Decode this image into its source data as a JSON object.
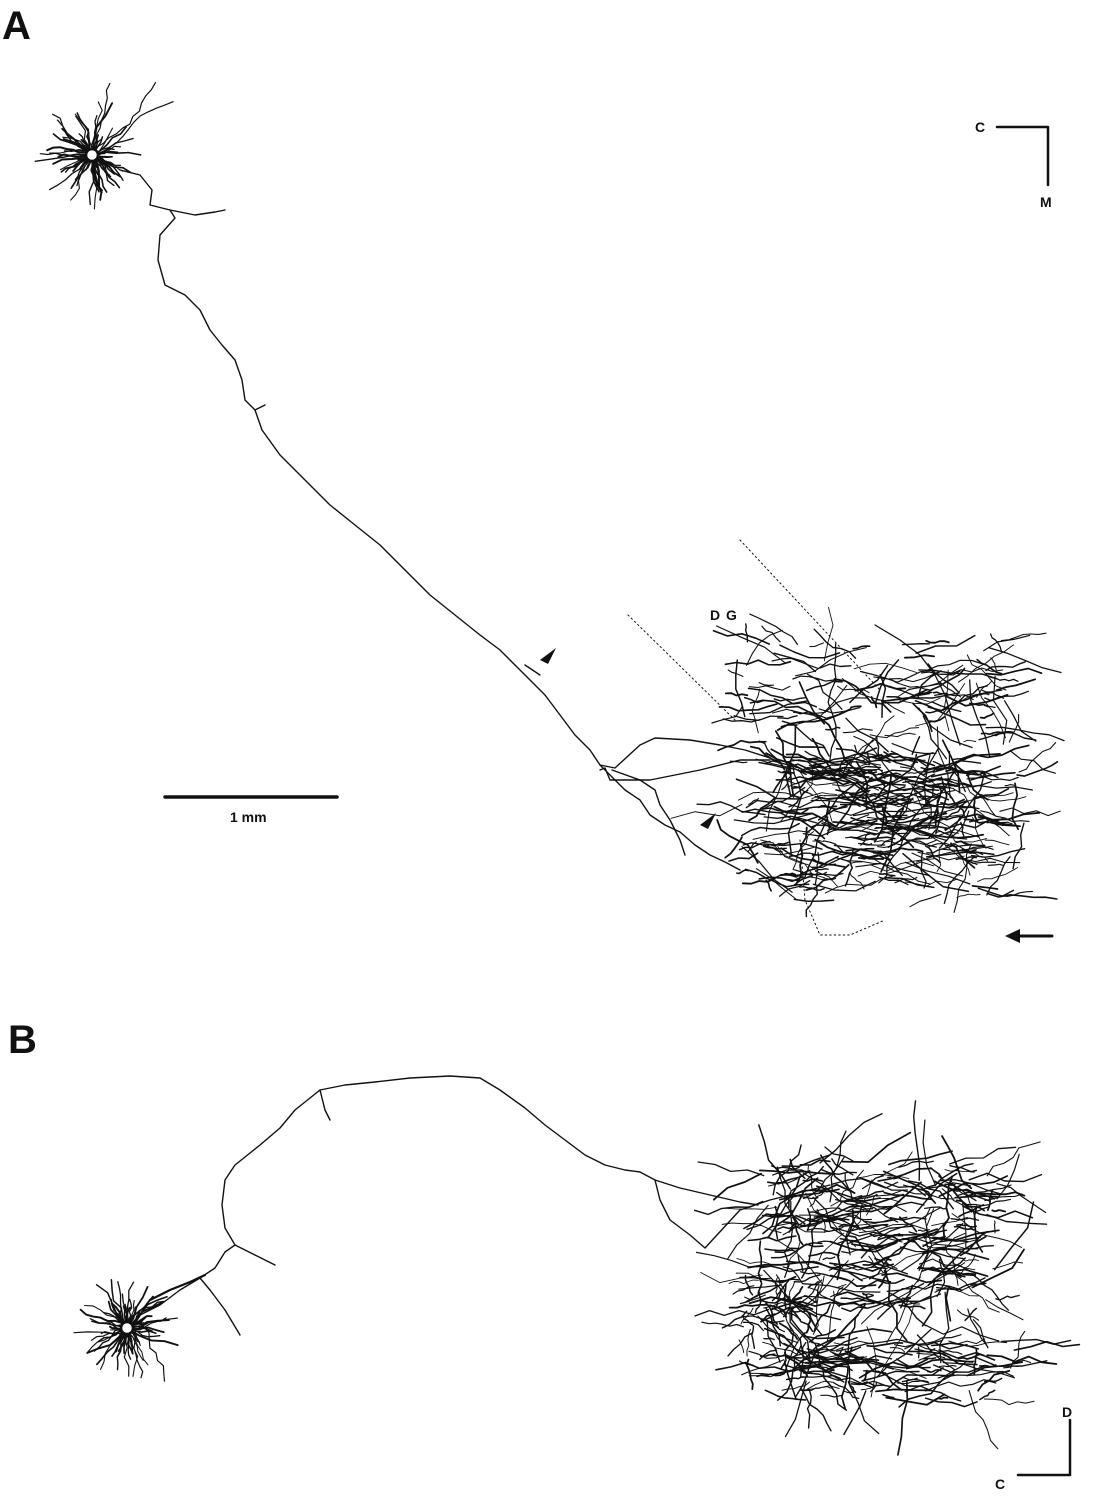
{
  "panels": [
    {
      "label": "A",
      "region_label": "D G",
      "scale_bar": "1 mm",
      "orientation": {
        "horizontal": "C",
        "vertical": "M"
      }
    },
    {
      "label": "B",
      "orientation": {
        "horizontal": "C",
        "vertical": "D"
      }
    }
  ]
}
